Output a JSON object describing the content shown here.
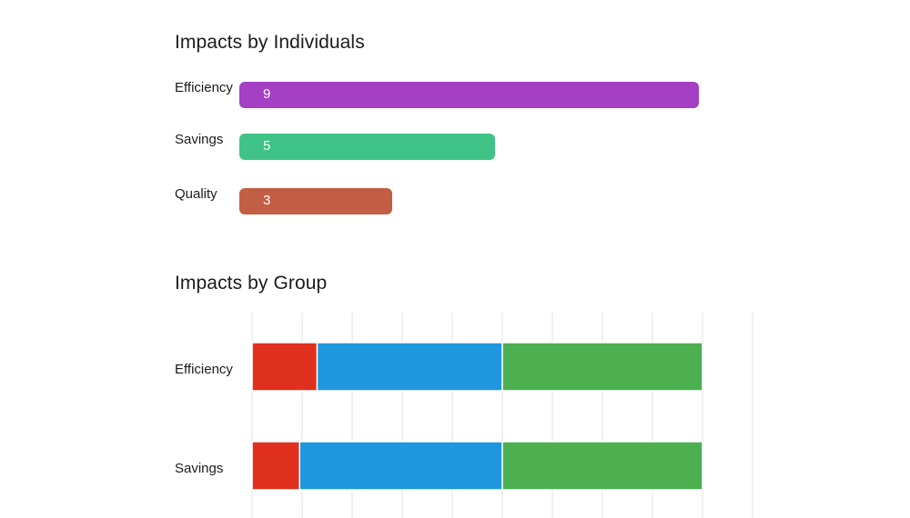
{
  "chart_data": [
    {
      "type": "bar",
      "orientation": "horizontal",
      "title": "Impacts by Individuals",
      "categories": [
        "Efficiency",
        "Savings",
        "Quality"
      ],
      "values": [
        9,
        5,
        3
      ],
      "colors": [
        "#a53fc3",
        "#3fc386",
        "#c25e43"
      ],
      "xlim": [
        0,
        9
      ],
      "grid": false
    },
    {
      "type": "bar",
      "orientation": "horizontal",
      "stacked": true,
      "title": "Impacts by Group",
      "categories": [
        "Efficiency",
        "Savings"
      ],
      "xlim": [
        0,
        10
      ],
      "grid": true,
      "series": [
        {
          "values": [
            1.3,
            0.95
          ],
          "color": "#e0301e"
        },
        {
          "values": [
            3.7,
            4.05
          ],
          "color": "#1e97de"
        },
        {
          "values": [
            4.0,
            4.0
          ],
          "color": "#4caf50"
        }
      ]
    }
  ]
}
